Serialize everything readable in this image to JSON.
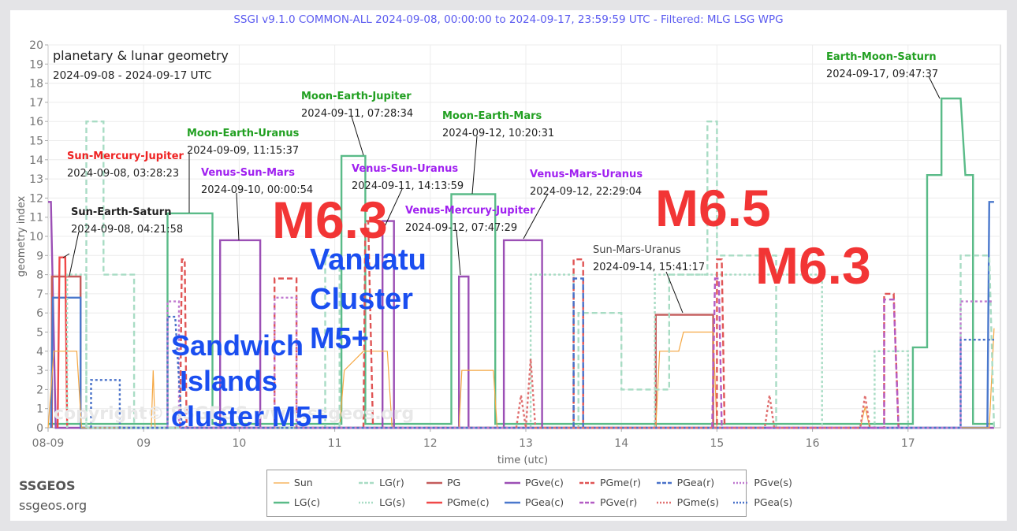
{
  "header": {
    "title": "SSGI v9.1.0 COMMON-ALL 2024-09-08, 00:00:00 to 2024-09-17, 23:59:59 UTC - Filtered: MLG LSG WPG"
  },
  "inset": {
    "line1": "planetary & lunar geometry",
    "line2": "2024-09-08 - 2024-09-17 UTC"
  },
  "branding": {
    "name": "SSGEOS",
    "url": "ssgeos.org",
    "watermark": "copyright© SSGEOS www.ssgeos.org"
  },
  "axes": {
    "xlabel": "time (utc)",
    "ylabel": "geometry index",
    "xticks": [
      "08-09",
      "09",
      "10",
      "11",
      "12",
      "13",
      "14",
      "15",
      "16",
      "17"
    ],
    "yticks": [
      "0",
      "1",
      "2",
      "3",
      "4",
      "5",
      "6",
      "7",
      "8",
      "9",
      "10",
      "11",
      "12",
      "13",
      "14",
      "15",
      "16",
      "17",
      "18",
      "19",
      "20"
    ]
  },
  "annotations": [
    {
      "title": "Sun-Mercury-Jupiter",
      "date": "2024-09-08, 03:28:23",
      "color": "#ee2222"
    },
    {
      "title": "Sun-Earth-Saturn",
      "date": "2024-09-08, 04:21:58",
      "color": "#222222"
    },
    {
      "title": "Moon-Earth-Uranus",
      "date": "2024-09-09, 11:15:37",
      "color": "#22a022"
    },
    {
      "title": "Venus-Sun-Mars",
      "date": "2024-09-10, 00:00:54",
      "color": "#a020f0"
    },
    {
      "title": "Moon-Earth-Jupiter",
      "date": "2024-09-11, 07:28:34",
      "color": "#22a022"
    },
    {
      "title": "Venus-Sun-Uranus",
      "date": "2024-09-11, 14:13:59",
      "color": "#a020f0"
    },
    {
      "title": "Moon-Earth-Mars",
      "date": "2024-09-12, 10:20:31",
      "color": "#22a022"
    },
    {
      "title": "Venus-Mercury-Jupiter",
      "date": "2024-09-12, 07:47:29",
      "color": "#a020f0"
    },
    {
      "title": "Venus-Mars-Uranus",
      "date": "2024-09-12, 22:29:04",
      "color": "#a020f0"
    },
    {
      "title": "Sun-Mars-Uranus",
      "date": "2024-09-14, 15:41:17",
      "color": "#444444"
    },
    {
      "title": "Earth-Moon-Saturn",
      "date": "2024-09-17, 09:47:37",
      "color": "#22a022"
    }
  ],
  "overlays": {
    "quake1": "M6.3",
    "quake2": "M6.5",
    "quake3": "M6.3",
    "vanuatu": [
      "Vanuatu",
      "Cluster",
      "M5+"
    ],
    "sandwich": [
      "Sandwich",
      "Islands",
      "cluster M5+"
    ]
  },
  "legend": {
    "items": [
      {
        "label": "Sun",
        "color": "#f5a742",
        "dash": "solid",
        "width": 1
      },
      {
        "label": "LG(r)",
        "color": "#a8dcc4",
        "dash": "dashed",
        "width": 2
      },
      {
        "label": "PG",
        "color": "#c45c5c",
        "dash": "solid",
        "width": 2
      },
      {
        "label": "PGve(c)",
        "color": "#9b4fb5",
        "dash": "solid",
        "width": 2
      },
      {
        "label": "PGme(r)",
        "color": "#e05555",
        "dash": "dashed",
        "width": 2
      },
      {
        "label": "PGea(r)",
        "color": "#4a72c9",
        "dash": "dashed",
        "width": 2
      },
      {
        "label": "PGve(s)",
        "color": "#c07ad0",
        "dash": "dotted",
        "width": 2
      },
      {
        "label": "LG(c)",
        "color": "#5abb88",
        "dash": "solid",
        "width": 2
      },
      {
        "label": "LG(s)",
        "color": "#a8dcc4",
        "dash": "dotted",
        "width": 2
      },
      {
        "label": "PGme(c)",
        "color": "#f04848",
        "dash": "solid",
        "width": 2
      },
      {
        "label": "PGea(c)",
        "color": "#4a78cc",
        "dash": "solid",
        "width": 2
      },
      {
        "label": "PGve(r)",
        "color": "#b35cc4",
        "dash": "dashed",
        "width": 2
      },
      {
        "label": "PGme(s)",
        "color": "#e07070",
        "dash": "dotted",
        "width": 2
      },
      {
        "label": "PGea(s)",
        "color": "#4a72c9",
        "dash": "dotted",
        "width": 2
      }
    ]
  },
  "chart_data": {
    "type": "line",
    "title": "planetary & lunar geometry",
    "subtitle": "2024-09-08 - 2024-09-17 UTC",
    "xlabel": "time (utc)",
    "ylabel": "geometry index",
    "ylim": [
      0,
      20
    ],
    "xlim": [
      "2024-09-08",
      "2024-09-17 23:59:59"
    ],
    "grid": true,
    "legend_position": "bottom",
    "series": [
      {
        "name": "LG(c)",
        "points": [
          [
            0,
            0.2
          ],
          [
            1.25,
            0.2
          ],
          [
            1.25,
            11.2
          ],
          [
            1.72,
            11.2
          ],
          [
            1.72,
            0.2
          ],
          [
            3.07,
            0.2
          ],
          [
            3.07,
            14.2
          ],
          [
            3.32,
            14.2
          ],
          [
            3.32,
            0.2
          ],
          [
            4.22,
            0.2
          ],
          [
            4.22,
            12.2
          ],
          [
            4.68,
            12.2
          ],
          [
            4.68,
            0.2
          ],
          [
            9.05,
            0.2
          ],
          [
            9.05,
            4.2
          ],
          [
            9.2,
            4.2
          ],
          [
            9.2,
            13.2
          ],
          [
            9.35,
            13.2
          ],
          [
            9.35,
            17.2
          ],
          [
            9.55,
            17.2
          ],
          [
            9.6,
            13.2
          ],
          [
            9.68,
            13.2
          ],
          [
            9.68,
            0.2
          ],
          [
            9.9,
            0.2
          ]
        ]
      },
      {
        "name": "PGve(c)",
        "points": [
          [
            0,
            11.8
          ],
          [
            0.03,
            11.8
          ],
          [
            0.08,
            0
          ],
          [
            1.8,
            0
          ],
          [
            1.8,
            9.8
          ],
          [
            2.22,
            9.8
          ],
          [
            2.22,
            0
          ],
          [
            3.5,
            0
          ],
          [
            3.5,
            10.8
          ],
          [
            3.62,
            10.8
          ],
          [
            3.62,
            0
          ],
          [
            4.3,
            0
          ],
          [
            4.3,
            7.9
          ],
          [
            4.4,
            7.9
          ],
          [
            4.4,
            0
          ],
          [
            4.77,
            0
          ],
          [
            4.77,
            9.8
          ],
          [
            5.17,
            9.8
          ],
          [
            5.17,
            0
          ],
          [
            9.9,
            0
          ]
        ]
      },
      {
        "name": "PG",
        "points": [
          [
            0.04,
            0
          ],
          [
            0.04,
            7.9
          ],
          [
            0.34,
            7.9
          ],
          [
            0.34,
            0
          ],
          [
            6.36,
            0
          ],
          [
            6.36,
            5.9
          ],
          [
            6.96,
            5.9
          ],
          [
            6.96,
            0
          ]
        ]
      },
      {
        "name": "PGea(c)",
        "points": [
          [
            0.03,
            0
          ],
          [
            0.05,
            6.8
          ],
          [
            0.34,
            6.8
          ],
          [
            0.34,
            0
          ],
          [
            9.83,
            0
          ],
          [
            9.85,
            11.8
          ],
          [
            9.9,
            11.8
          ]
        ]
      },
      {
        "name": "PGme(c)",
        "points": [
          [
            0.1,
            0
          ],
          [
            0.12,
            8.9
          ],
          [
            0.18,
            8.9
          ],
          [
            0.2,
            0
          ]
        ]
      },
      {
        "name": "Sun",
        "points": [
          [
            0,
            0
          ],
          [
            0.06,
            4
          ],
          [
            0.3,
            4
          ],
          [
            0.35,
            0
          ],
          [
            1.08,
            0
          ],
          [
            1.1,
            3
          ],
          [
            1.12,
            0
          ],
          [
            3.05,
            0
          ],
          [
            3.1,
            3
          ],
          [
            3.3,
            4
          ],
          [
            3.55,
            4
          ],
          [
            3.6,
            0
          ],
          [
            4.3,
            0
          ],
          [
            4.33,
            3
          ],
          [
            4.66,
            3
          ],
          [
            4.7,
            0
          ],
          [
            6.36,
            0
          ],
          [
            6.4,
            4
          ],
          [
            6.6,
            4
          ],
          [
            6.65,
            5
          ],
          [
            6.96,
            5
          ],
          [
            7.0,
            0
          ],
          [
            8.5,
            0
          ],
          [
            8.55,
            1.1
          ],
          [
            8.6,
            0
          ],
          [
            9.85,
            0
          ],
          [
            9.9,
            5.2
          ]
        ]
      },
      {
        "name": "LG(r)",
        "points": [
          [
            0.4,
            0
          ],
          [
            0.4,
            16
          ],
          [
            0.58,
            16
          ],
          [
            0.58,
            8
          ],
          [
            0.9,
            8
          ],
          [
            0.9,
            0
          ],
          [
            2.9,
            0
          ],
          [
            2.9,
            9
          ],
          [
            3.05,
            9
          ],
          [
            3.05,
            0
          ],
          [
            5.55,
            0
          ],
          [
            5.55,
            6
          ],
          [
            6.0,
            6
          ],
          [
            6.0,
            2
          ],
          [
            6.5,
            2
          ],
          [
            6.5,
            8
          ],
          [
            6.9,
            8
          ],
          [
            6.9,
            16
          ],
          [
            7.0,
            16
          ],
          [
            7.0,
            9
          ],
          [
            7.62,
            9
          ],
          [
            7.62,
            0
          ],
          [
            9.55,
            0
          ],
          [
            9.55,
            9
          ],
          [
            9.85,
            9
          ],
          [
            9.9,
            0
          ]
        ]
      },
      {
        "name": "LG(s)",
        "points": [
          [
            0.2,
            0
          ],
          [
            0.2,
            8
          ],
          [
            0.4,
            8
          ],
          [
            0.4,
            0
          ],
          [
            5.05,
            0
          ],
          [
            5.05,
            8
          ],
          [
            5.5,
            8
          ],
          [
            5.5,
            0
          ],
          [
            6.35,
            0
          ],
          [
            6.35,
            8
          ],
          [
            6.9,
            8
          ],
          [
            8.1,
            8
          ],
          [
            8.1,
            0
          ],
          [
            8.65,
            0
          ],
          [
            8.65,
            4
          ],
          [
            9.0,
            4
          ],
          [
            9.0,
            0
          ]
        ]
      },
      {
        "name": "PGme(r)",
        "points": [
          [
            1.38,
            0
          ],
          [
            1.4,
            8.8
          ],
          [
            1.43,
            8.8
          ],
          [
            1.45,
            0
          ],
          [
            2.37,
            0
          ],
          [
            2.37,
            7.8
          ],
          [
            2.6,
            7.8
          ],
          [
            2.6,
            0
          ],
          [
            3.3,
            0
          ],
          [
            3.32,
            10.8
          ],
          [
            3.35,
            10.8
          ],
          [
            3.4,
            0
          ],
          [
            5.5,
            0
          ],
          [
            5.5,
            8.8
          ],
          [
            5.6,
            8.8
          ],
          [
            5.6,
            0
          ],
          [
            7.0,
            0
          ],
          [
            7.0,
            8.8
          ],
          [
            7.05,
            8.8
          ],
          [
            7.08,
            0
          ],
          [
            8.75,
            0
          ],
          [
            8.75,
            7
          ],
          [
            8.85,
            7
          ],
          [
            8.9,
            0
          ]
        ]
      },
      {
        "name": "PGve(s)",
        "points": [
          [
            1.25,
            0
          ],
          [
            1.25,
            6.6
          ],
          [
            1.37,
            6.6
          ],
          [
            1.37,
            0
          ],
          [
            2.37,
            0
          ],
          [
            2.37,
            6.8
          ],
          [
            2.6,
            6.8
          ],
          [
            2.6,
            0
          ],
          [
            9.55,
            0
          ],
          [
            9.55,
            6.6
          ],
          [
            9.9,
            6.6
          ]
        ]
      },
      {
        "name": "PGea(s)",
        "points": [
          [
            0.45,
            0
          ],
          [
            0.45,
            2.5
          ],
          [
            0.75,
            2.5
          ],
          [
            0.75,
            0
          ],
          [
            1.25,
            0
          ],
          [
            1.25,
            5.8
          ],
          [
            1.33,
            5.8
          ],
          [
            1.4,
            0
          ],
          [
            9.55,
            0
          ],
          [
            9.55,
            4.6
          ],
          [
            9.9,
            4.6
          ]
        ]
      },
      {
        "name": "PGea(r)",
        "points": [
          [
            5.5,
            0
          ],
          [
            5.5,
            7.8
          ],
          [
            5.6,
            7.8
          ],
          [
            5.6,
            0
          ]
        ]
      },
      {
        "name": "PGve(r)",
        "points": [
          [
            6.95,
            0
          ],
          [
            6.98,
            7.8
          ],
          [
            7.02,
            7.8
          ],
          [
            7.05,
            0
          ],
          [
            8.75,
            0
          ],
          [
            8.75,
            6.7
          ],
          [
            8.85,
            6.7
          ],
          [
            8.9,
            0
          ]
        ]
      },
      {
        "name": "PGme(s)",
        "points": [
          [
            4.9,
            0
          ],
          [
            4.95,
            1.7
          ],
          [
            5.0,
            0
          ],
          [
            5.05,
            3.6
          ],
          [
            5.1,
            0
          ],
          [
            7.5,
            0
          ],
          [
            7.55,
            1.7
          ],
          [
            7.6,
            0
          ],
          [
            8.5,
            0
          ],
          [
            8.55,
            1.7
          ],
          [
            8.6,
            0
          ]
        ]
      }
    ],
    "annotations": [
      {
        "text": "Sun-Mercury-Jupiter 2024-09-08, 03:28:23",
        "x": 0.14,
        "y": 8.9
      },
      {
        "text": "Sun-Earth-Saturn 2024-09-08, 04:21:58",
        "x": 0.18,
        "y": 7.9
      },
      {
        "text": "Moon-Earth-Uranus 2024-09-09, 11:15:37",
        "x": 1.47,
        "y": 11.2
      },
      {
        "text": "Venus-Sun-Mars 2024-09-10, 00:00:54",
        "x": 2.0,
        "y": 9.8
      },
      {
        "text": "Moon-Earth-Jupiter 2024-09-11, 07:28:34",
        "x": 3.31,
        "y": 14.2
      },
      {
        "text": "Venus-Sun-Uranus 2024-09-11, 14:13:59",
        "x": 3.59,
        "y": 10.8
      },
      {
        "text": "Moon-Earth-Mars 2024-09-12, 10:20:31",
        "x": 4.43,
        "y": 12.2
      },
      {
        "text": "Venus-Mercury-Jupiter 2024-09-12, 07:47:29",
        "x": 4.32,
        "y": 7.9
      },
      {
        "text": "Venus-Mars-Uranus 2024-09-12, 22:29:04",
        "x": 4.94,
        "y": 9.8
      },
      {
        "text": "Sun-Mars-Uranus 2024-09-14, 15:41:17",
        "x": 6.65,
        "y": 5.9
      },
      {
        "text": "Earth-Moon-Saturn 2024-09-17, 09:47:37",
        "x": 9.41,
        "y": 17.2
      }
    ]
  }
}
